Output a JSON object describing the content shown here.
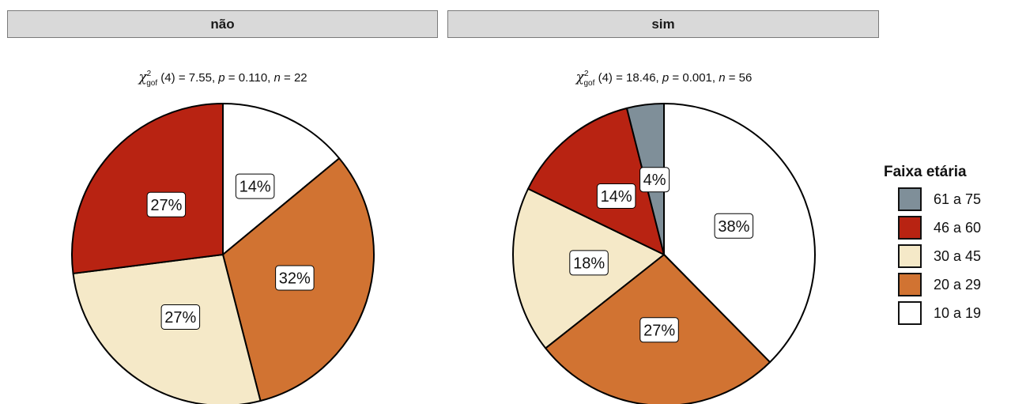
{
  "chart_data": [
    {
      "type": "pie",
      "facet": "não",
      "subtitle": {
        "stat": "χ",
        "stat_sup": "2",
        "stat_sub": "gof",
        "df": "(4)",
        "value": "= 7.55,",
        "p_label": "p",
        "p_value": "= 0.110,",
        "n_label": "n",
        "n_value": "= 22"
      },
      "slices": [
        {
          "label": "10 a 19",
          "value": 14,
          "text": "14%"
        },
        {
          "label": "20 a 29",
          "value": 32,
          "text": "32%"
        },
        {
          "label": "30 a 45",
          "value": 27,
          "text": "27%"
        },
        {
          "label": "46 a 60",
          "value": 27,
          "text": "27%"
        }
      ]
    },
    {
      "type": "pie",
      "facet": "sim",
      "subtitle": {
        "stat": "χ",
        "stat_sup": "2",
        "stat_sub": "gof",
        "df": "(4)",
        "value": "= 18.46,",
        "p_label": "p",
        "p_value": "= 0.001,",
        "n_label": "n",
        "n_value": "= 56"
      },
      "slices": [
        {
          "label": "10 a 19",
          "value": 38,
          "text": "38%"
        },
        {
          "label": "20 a 29",
          "value": 27,
          "text": "27%"
        },
        {
          "label": "30 a 45",
          "value": 18,
          "text": "18%"
        },
        {
          "label": "46 a 60",
          "value": 14,
          "text": "14%"
        },
        {
          "label": "61 a 75",
          "value": 4,
          "text": "4%"
        }
      ]
    }
  ],
  "legend": {
    "title": "Faixa etária",
    "position": "right",
    "items": [
      {
        "label": "61 a 75",
        "color": "#7f8f99"
      },
      {
        "label": "46 a 60",
        "color": "#b82312"
      },
      {
        "label": "30 a 45",
        "color": "#f5e9c8"
      },
      {
        "label": "20 a 29",
        "color": "#d17332"
      },
      {
        "label": "10 a 19",
        "color": "#ffffff"
      }
    ]
  }
}
